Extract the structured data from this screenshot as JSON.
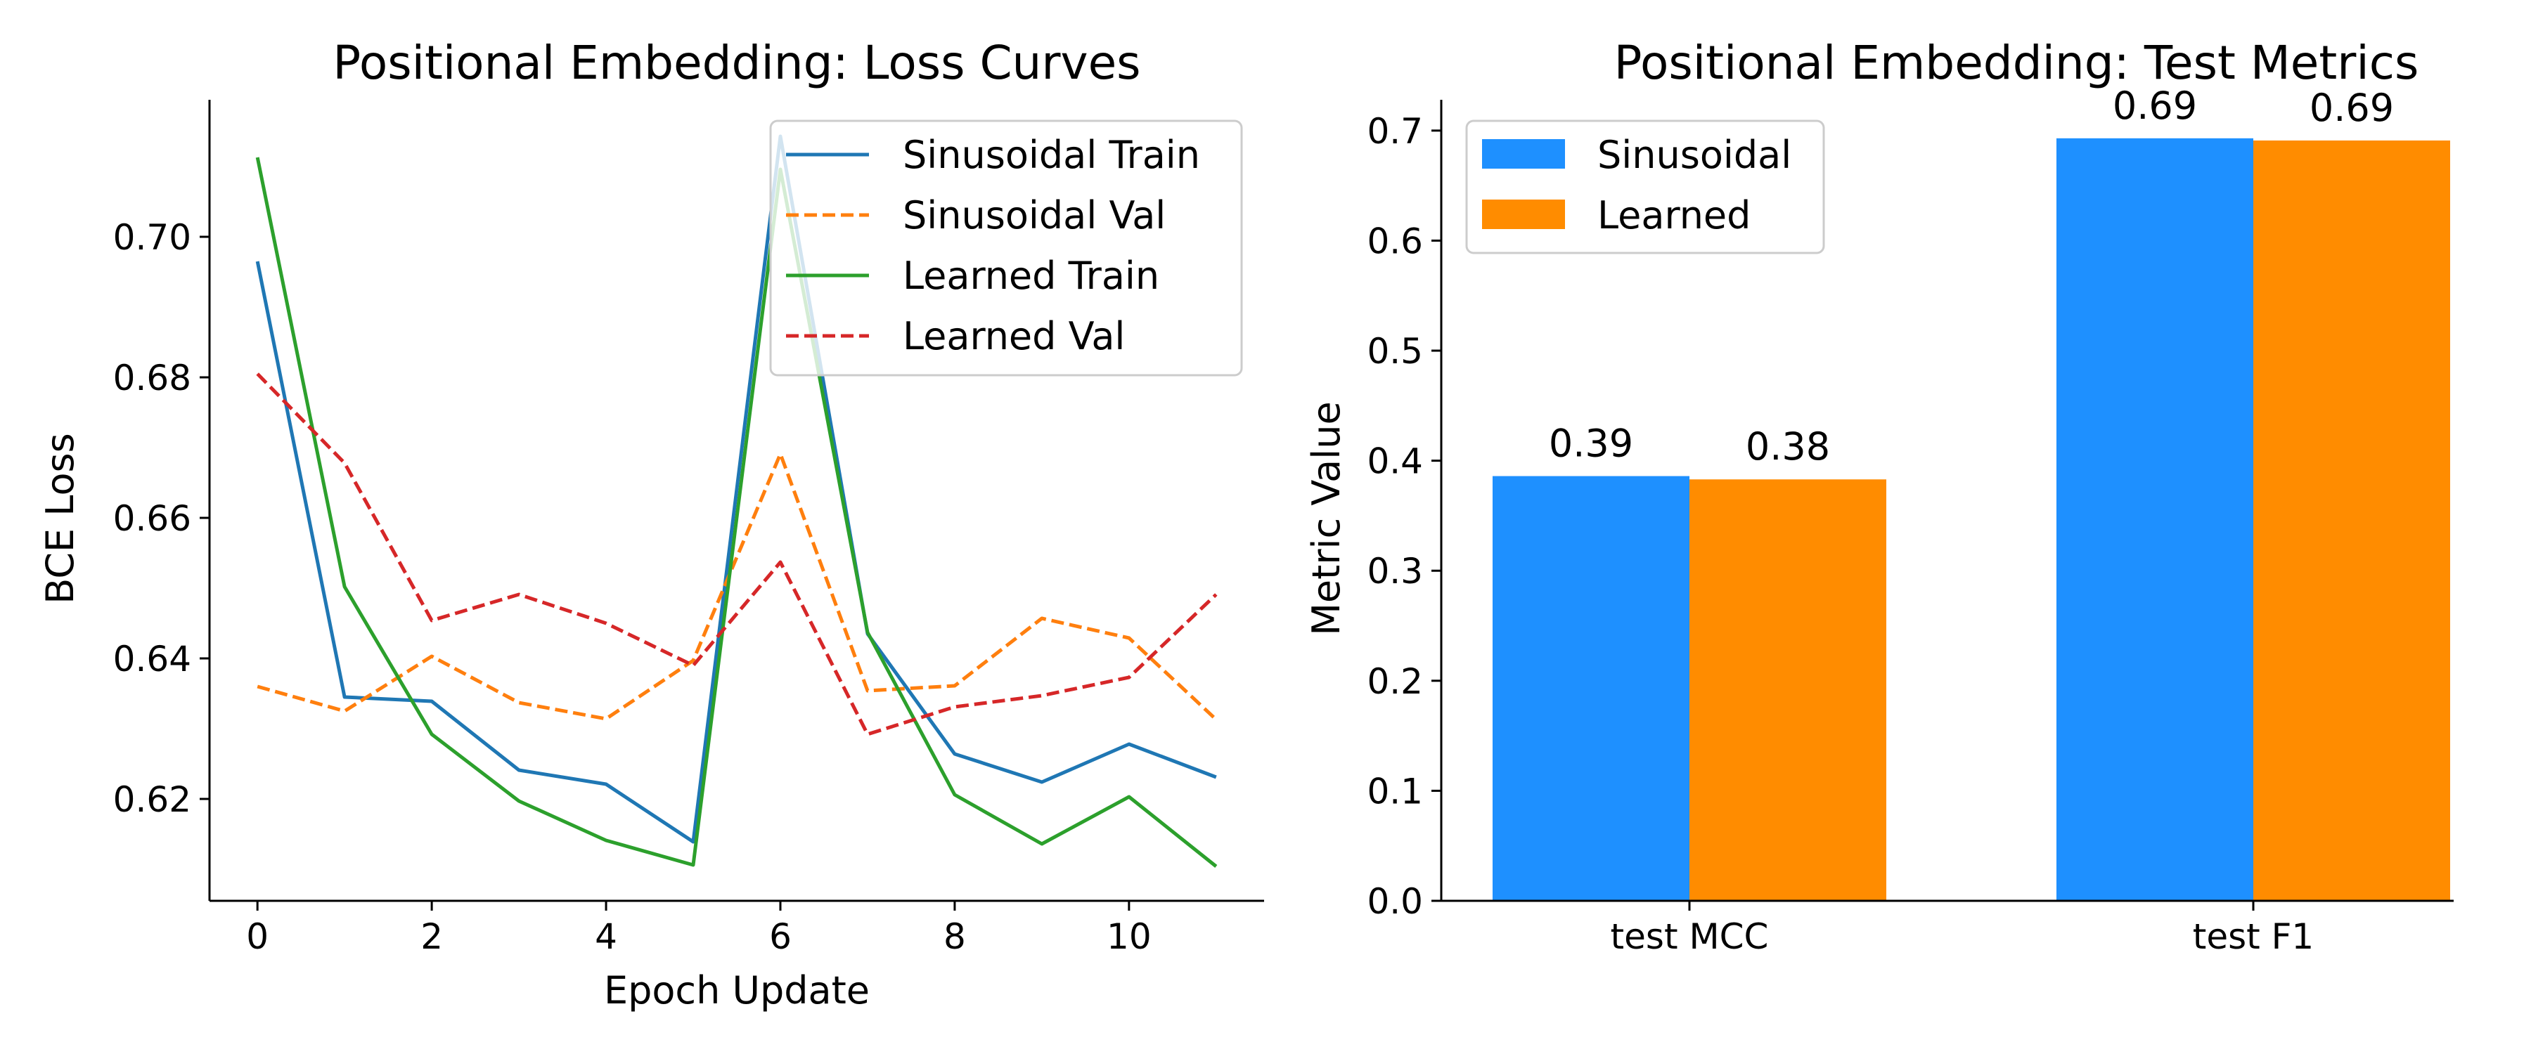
{
  "chart_data": [
    {
      "type": "line",
      "title": "Positional Embedding: Loss Curves",
      "xlabel": "Epoch Update",
      "ylabel": "BCE Loss",
      "xlim": [
        -0.55,
        11.55
      ],
      "ylim": [
        0.6055,
        0.7195
      ],
      "xticks": [
        0,
        2,
        4,
        6,
        8,
        10
      ],
      "yticks": [
        0.62,
        0.64,
        0.66,
        0.68,
        0.7
      ],
      "ytick_labels": [
        "0.62",
        "0.64",
        "0.66",
        "0.68",
        "0.70"
      ],
      "legend_position": "top-right",
      "grid": false,
      "x": [
        0,
        1,
        2,
        3,
        4,
        5,
        6,
        7,
        8,
        9,
        10,
        11
      ],
      "series": [
        {
          "name": "Sinusoidal Train",
          "color": "#1f77b4",
          "dash": "solid",
          "values": [
            0.6965,
            0.6345,
            0.6339,
            0.6241,
            0.6221,
            0.6139,
            0.7143,
            0.6435,
            0.6264,
            0.6224,
            0.6278,
            0.6231
          ]
        },
        {
          "name": "Sinusoidal Val",
          "color": "#ff7f0e",
          "dash": "dashed",
          "values": [
            0.636,
            0.6325,
            0.6403,
            0.6337,
            0.6314,
            0.6397,
            0.6691,
            0.6354,
            0.6361,
            0.6457,
            0.6429,
            0.6313
          ]
        },
        {
          "name": "Learned Train",
          "color": "#2ca02c",
          "dash": "solid",
          "values": [
            0.7113,
            0.6502,
            0.6292,
            0.6197,
            0.6141,
            0.6106,
            0.7096,
            0.6437,
            0.6206,
            0.6136,
            0.6203,
            0.6104
          ]
        },
        {
          "name": "Learned Val",
          "color": "#d62728",
          "dash": "dashed",
          "values": [
            0.6805,
            0.6678,
            0.6454,
            0.6491,
            0.645,
            0.639,
            0.6537,
            0.6292,
            0.6331,
            0.6347,
            0.6373,
            0.6491
          ]
        }
      ]
    },
    {
      "type": "bar",
      "title": "Positional Embedding: Test Metrics",
      "xlabel": "",
      "ylabel": "Metric Value",
      "ylim": [
        0,
        0.728
      ],
      "yticks": [
        0.0,
        0.1,
        0.2,
        0.3,
        0.4,
        0.5,
        0.6,
        0.7
      ],
      "ytick_labels": [
        "0.0",
        "0.1",
        "0.2",
        "0.3",
        "0.4",
        "0.5",
        "0.6",
        "0.7"
      ],
      "legend_position": "top-left",
      "grid": false,
      "categories": [
        "test MCC",
        "test F1"
      ],
      "series": [
        {
          "name": "Sinusoidal",
          "color": "#1e90ff",
          "values": [
            0.386,
            0.693
          ],
          "labels": [
            "0.39",
            "0.69"
          ]
        },
        {
          "name": "Learned",
          "color": "#ff8c00",
          "values": [
            0.383,
            0.691
          ],
          "labels": [
            "0.38",
            "0.69"
          ]
        }
      ]
    }
  ]
}
